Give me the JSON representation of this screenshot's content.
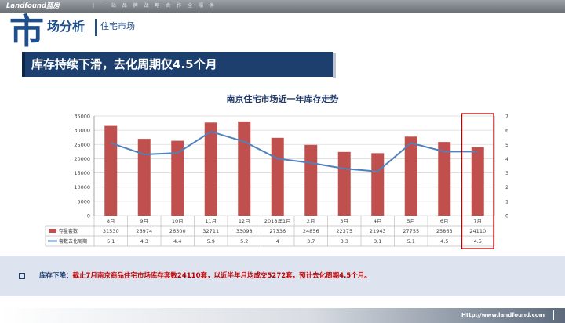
{
  "header": {
    "logo": "Landfound蓝房",
    "tagline": "| 一 站 品 牌 战 略 合 作 全 服 务",
    "big_char": "市",
    "section_title": "场分析",
    "subsection": "住宅市场"
  },
  "headline": "库存持续下滑，去化周期仅4.5个月",
  "colors": {
    "bar": "#c0504d",
    "line": "#4f81bd",
    "accent": "#1c3f6e",
    "highlight": "#c00000"
  },
  "chart_data": {
    "type": "bar",
    "title": "南京住宅市场近一年库存走势",
    "categories": [
      "8月",
      "9月",
      "10月",
      "11月",
      "12月",
      "2018年1月",
      "2月",
      "3月",
      "4月",
      "5月",
      "6月",
      "7月"
    ],
    "series": [
      {
        "name": "存量套数",
        "type": "bar",
        "axis": "left",
        "values": [
          31530,
          26974,
          26300,
          32711,
          33098,
          27336,
          24856,
          22375,
          21943,
          27755,
          25863,
          24110
        ]
      },
      {
        "name": "套数去化周期",
        "type": "line",
        "axis": "right",
        "values": [
          5.1,
          4.3,
          4.4,
          5.9,
          5.2,
          4,
          3.7,
          3.3,
          3.1,
          5.1,
          4.5,
          4.5
        ]
      }
    ],
    "y_left": {
      "range": [
        0,
        35000
      ],
      "ticks": [
        "0",
        "5000",
        "10000",
        "15000",
        "20000",
        "25000",
        "30000",
        "35000"
      ]
    },
    "y_right": {
      "range": [
        0,
        7
      ],
      "ticks": [
        "0",
        "1",
        "2",
        "3",
        "4",
        "5",
        "6",
        "7"
      ]
    },
    "table_rows": [
      {
        "label": "存量套数",
        "cells": [
          "31530",
          "26974",
          "26300",
          "32711",
          "33098",
          "27336",
          "24856",
          "22375",
          "21943",
          "27755",
          "25863",
          "24110"
        ]
      },
      {
        "label": "套数去化周期",
        "cells": [
          "5.1",
          "4.3",
          "4.4",
          "5.9",
          "5.2",
          "4",
          "3.7",
          "3.3",
          "3.1",
          "5.1",
          "4.5",
          "4.5"
        ]
      }
    ],
    "grid": true,
    "legend": "data-table"
  },
  "summary": {
    "label": "库存下降：",
    "text": "截止7月南京商品住宅市场库存套数24110套，以近半年月均成交5272套，预计去化周期4.5个月。"
  },
  "footer": {
    "url": "Http://www.landfound.com"
  }
}
